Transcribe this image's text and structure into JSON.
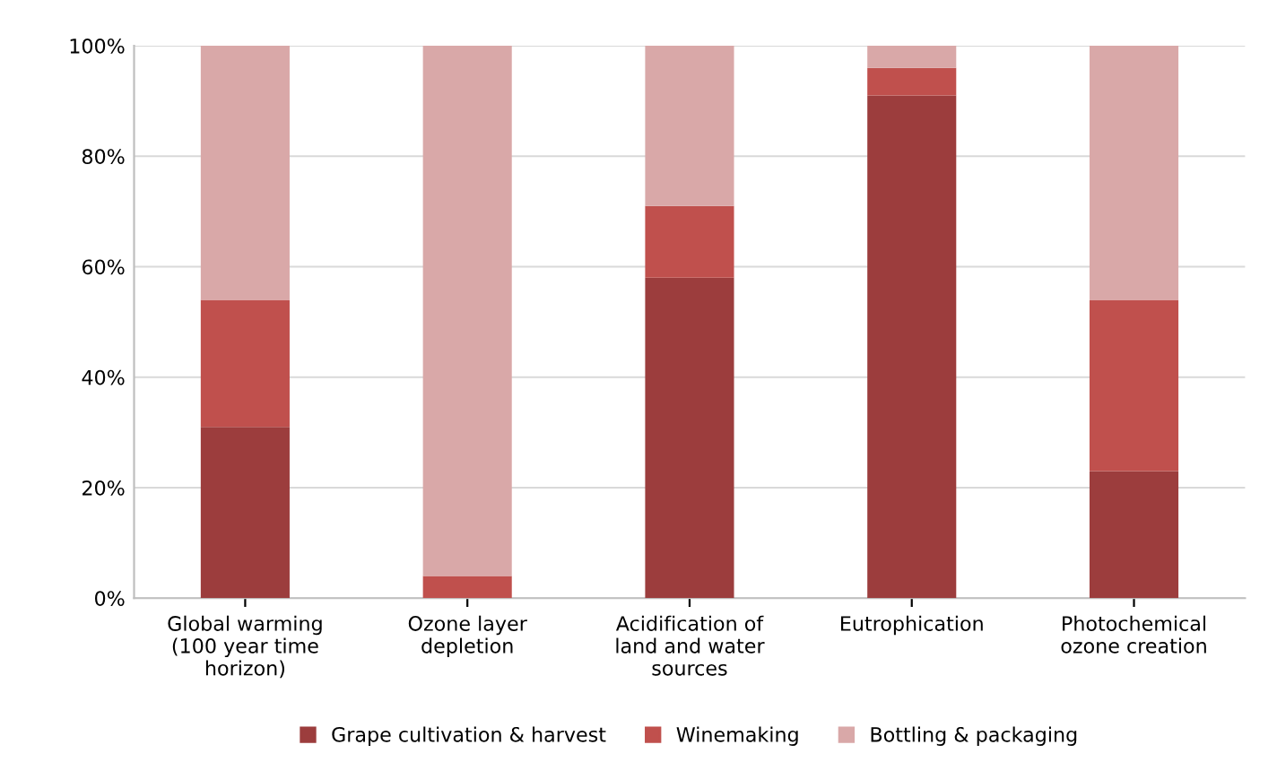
{
  "chart_data": {
    "type": "bar",
    "stacked": true,
    "categories": [
      "Global warming\n(100 year time\nhorizon)",
      "Ozone layer\ndepletion",
      "Acidification of\nland and water\nsources",
      "Eutrophication",
      "Photochemical\nozone creation"
    ],
    "series": [
      {
        "name": "Grape cultivation & harvest",
        "color": "#9c3d3d",
        "values": [
          31,
          0,
          58,
          91,
          23
        ]
      },
      {
        "name": "Winemaking",
        "color": "#c0504d",
        "values": [
          23,
          4,
          13,
          5,
          31
        ]
      },
      {
        "name": "Bottling & packaging",
        "color": "#d9a8a8",
        "values": [
          46,
          96,
          29,
          4,
          46
        ]
      }
    ],
    "ylim": [
      0,
      100
    ],
    "yticks": [
      {
        "value": 0,
        "label": "0%"
      },
      {
        "value": 20,
        "label": "20%"
      },
      {
        "value": 40,
        "label": "40%"
      },
      {
        "value": 60,
        "label": "60%"
      },
      {
        "value": 80,
        "label": "80%"
      },
      {
        "value": 100,
        "label": "100%"
      }
    ],
    "grid": "y",
    "legend": "bottom"
  }
}
